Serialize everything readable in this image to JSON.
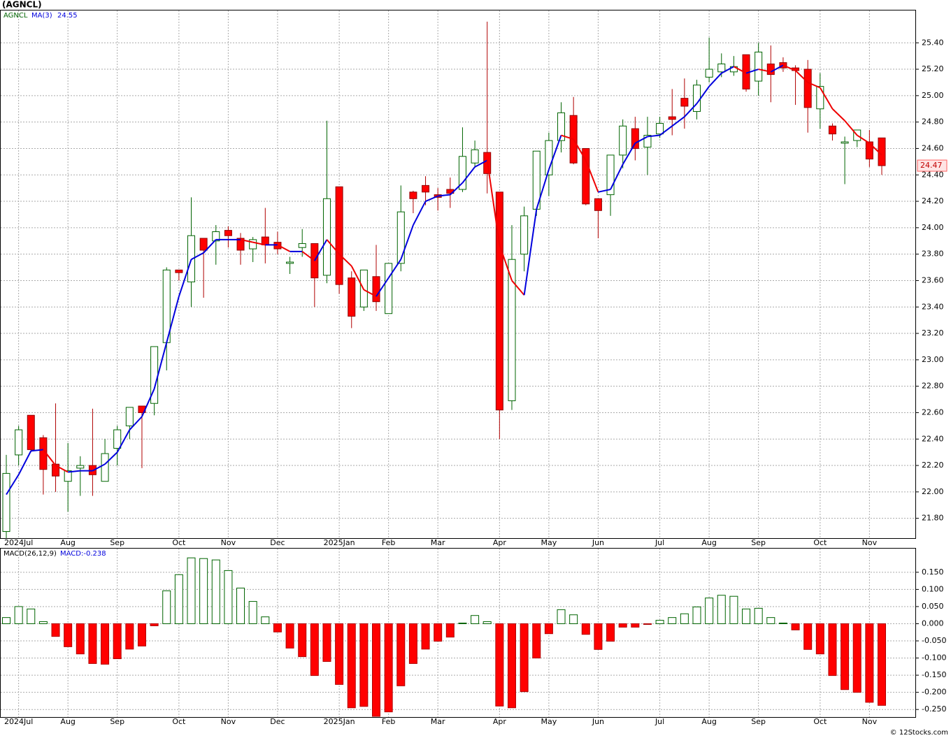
{
  "source": "© 12Stocks.com",
  "chart_data": [
    {
      "type": "candlestick",
      "title": "(AGNCL)",
      "symbol": "AGNCL",
      "categories": [
        null,
        "2024Jul",
        null,
        null,
        null,
        "Aug",
        null,
        null,
        null,
        "Sep",
        null,
        null,
        null,
        null,
        "Oct",
        null,
        null,
        null,
        "Nov",
        null,
        null,
        null,
        "Dec",
        null,
        null,
        null,
        null,
        "2025Jan",
        null,
        null,
        null,
        "Feb",
        null,
        null,
        null,
        "Mar",
        null,
        null,
        null,
        null,
        "Apr",
        null,
        null,
        null,
        "May",
        null,
        null,
        null,
        "Jun",
        null,
        null,
        null,
        null,
        "Jul",
        null,
        null,
        null,
        "Aug",
        null,
        null,
        null,
        "Sep",
        null,
        null,
        null,
        null,
        "Oct",
        null,
        null,
        null,
        "Nov",
        null
      ],
      "open": [
        21.7,
        22.28,
        22.58,
        22.41,
        22.21,
        22.08,
        22.18,
        22.2,
        22.08,
        22.33,
        22.5,
        22.65,
        22.67,
        23.13,
        23.68,
        23.59,
        23.92,
        23.9,
        23.98,
        23.92,
        23.84,
        23.93,
        23.89,
        23.73,
        23.85,
        23.88,
        23.64,
        24.31,
        23.62,
        23.4,
        23.63,
        23.35,
        23.73,
        24.27,
        24.32,
        24.25,
        24.29,
        24.29,
        24.49,
        24.57,
        24.27,
        22.69,
        23.8,
        24.14,
        24.4,
        24.66,
        24.85,
        24.6,
        24.22,
        24.25,
        24.55,
        24.75,
        24.61,
        24.71,
        24.84,
        24.98,
        24.88,
        25.14,
        25.18,
        25.18,
        25.31,
        25.11,
        25.24,
        25.25,
        25.21,
        25.2,
        24.9,
        24.77,
        24.64,
        24.66,
        24.65,
        24.68
      ],
      "high": [
        22.28,
        22.5,
        22.58,
        22.43,
        22.67,
        22.37,
        22.27,
        22.63,
        22.4,
        22.5,
        22.64,
        22.65,
        23.1,
        23.7,
        23.68,
        24.23,
        23.92,
        24.02,
        24.01,
        23.96,
        23.93,
        24.15,
        23.97,
        23.78,
        23.99,
        23.88,
        24.81,
        24.31,
        23.67,
        23.68,
        23.87,
        23.73,
        24.32,
        24.28,
        24.39,
        24.3,
        24.38,
        24.76,
        24.66,
        25.56,
        24.27,
        24.02,
        24.16,
        24.58,
        24.72,
        24.95,
        24.99,
        24.6,
        24.22,
        24.55,
        24.82,
        24.84,
        24.84,
        24.84,
        25.05,
        25.13,
        25.12,
        25.44,
        25.32,
        25.3,
        25.31,
        25.4,
        25.38,
        25.29,
        25.23,
        25.27,
        25.17,
        24.79,
        24.69,
        24.74,
        24.74,
        24.68
      ],
      "low": [
        21.65,
        22.2,
        22.3,
        21.98,
        22.0,
        21.85,
        21.97,
        21.97,
        22.08,
        22.2,
        22.4,
        22.18,
        22.58,
        22.92,
        23.6,
        23.4,
        23.47,
        23.72,
        23.85,
        23.72,
        23.74,
        23.73,
        23.8,
        23.65,
        23.78,
        23.4,
        23.58,
        23.5,
        23.24,
        23.37,
        23.37,
        23.35,
        23.67,
        24.11,
        24.17,
        24.13,
        24.15,
        24.27,
        24.46,
        24.26,
        22.4,
        22.62,
        23.67,
        24.09,
        24.24,
        24.57,
        24.48,
        24.17,
        23.92,
        24.09,
        24.45,
        24.51,
        24.4,
        24.68,
        24.7,
        24.75,
        24.82,
        25.1,
        25.14,
        25.15,
        25.03,
        25.0,
        24.95,
        25.18,
        24.93,
        24.72,
        24.75,
        24.66,
        24.33,
        24.61,
        24.46,
        24.4
      ],
      "close": [
        22.14,
        22.47,
        22.32,
        22.17,
        22.12,
        22.16,
        22.2,
        22.13,
        22.29,
        22.47,
        22.64,
        22.6,
        23.1,
        23.68,
        23.66,
        23.94,
        23.83,
        23.97,
        23.94,
        23.83,
        23.91,
        23.87,
        23.84,
        23.74,
        23.88,
        23.62,
        24.22,
        23.57,
        23.33,
        23.68,
        23.44,
        23.73,
        24.12,
        24.22,
        24.27,
        24.23,
        24.26,
        24.54,
        24.59,
        24.41,
        22.62,
        23.76,
        24.09,
        24.58,
        24.66,
        24.87,
        24.49,
        24.18,
        24.13,
        24.55,
        24.77,
        24.6,
        24.7,
        24.79,
        24.82,
        24.92,
        25.08,
        25.2,
        25.24,
        25.22,
        25.05,
        25.33,
        25.16,
        25.21,
        25.19,
        24.91,
        25.07,
        24.71,
        24.65,
        24.74,
        24.52,
        24.47
      ],
      "series": [
        {
          "name": "MA(3)",
          "color": "#0000dd",
          "down_color": "#ee0000",
          "values": [
            21.98,
            22.13,
            22.31,
            22.32,
            22.2,
            22.15,
            22.16,
            22.16,
            22.21,
            22.3,
            22.47,
            22.57,
            22.78,
            23.13,
            23.48,
            23.76,
            23.81,
            23.91,
            23.91,
            23.91,
            23.89,
            23.87,
            23.87,
            23.82,
            23.82,
            23.75,
            23.91,
            23.8,
            23.71,
            23.53,
            23.48,
            23.62,
            23.76,
            24.02,
            24.2,
            24.24,
            24.25,
            24.34,
            24.46,
            24.51,
            23.87,
            23.6,
            23.49,
            24.14,
            24.44,
            24.7,
            24.67,
            24.51,
            24.27,
            24.29,
            24.48,
            24.64,
            24.69,
            24.7,
            24.77,
            24.84,
            24.94,
            25.07,
            25.17,
            25.22,
            25.17,
            25.2,
            25.18,
            25.23,
            25.19,
            25.1,
            25.06,
            24.9,
            24.81,
            24.7,
            24.64,
            24.55
          ]
        }
      ],
      "up_color": "#006400",
      "down_color": "#ff0000",
      "ylim": [
        21.65,
        25.65
      ],
      "yticks": [
        {
          "value": 21.8,
          "label": "21.80"
        },
        {
          "value": 22.0,
          "label": "22.00"
        },
        {
          "value": 22.2,
          "label": "22.20"
        },
        {
          "value": 22.4,
          "label": "22.40"
        },
        {
          "value": 22.6,
          "label": "22.60"
        },
        {
          "value": 22.8,
          "label": "22.80"
        },
        {
          "value": 23.0,
          "label": "23.00"
        },
        {
          "value": 23.2,
          "label": "23.20"
        },
        {
          "value": 23.4,
          "label": "23.40"
        },
        {
          "value": 23.6,
          "label": "23.60"
        },
        {
          "value": 23.8,
          "label": "23.80"
        },
        {
          "value": 24.0,
          "label": "24.00"
        },
        {
          "value": 24.2,
          "label": "24.20"
        },
        {
          "value": 24.4,
          "label": "24.40"
        },
        {
          "value": 24.6,
          "label": "24.60"
        },
        {
          "value": 24.8,
          "label": "24.80"
        },
        {
          "value": 25.0,
          "label": "25.00"
        },
        {
          "value": 25.2,
          "label": "25.20"
        },
        {
          "value": 25.4,
          "label": "25.40"
        }
      ],
      "grid": true
    },
    {
      "type": "bar",
      "title": "MACD(26,12,9)",
      "value_label": "MACD:-0.238",
      "values": [
        0.018,
        0.05,
        0.043,
        0.006,
        -0.037,
        -0.067,
        -0.088,
        -0.116,
        -0.118,
        -0.102,
        -0.074,
        -0.065,
        -0.006,
        0.096,
        0.143,
        0.192,
        0.19,
        0.186,
        0.155,
        0.104,
        0.065,
        0.02,
        -0.024,
        -0.071,
        -0.096,
        -0.151,
        -0.11,
        -0.177,
        -0.245,
        -0.241,
        -0.27,
        -0.257,
        -0.181,
        -0.116,
        -0.074,
        -0.051,
        -0.039,
        0.002,
        0.024,
        0.006,
        -0.24,
        -0.245,
        -0.198,
        -0.1,
        -0.029,
        0.041,
        0.026,
        -0.031,
        -0.075,
        -0.051,
        -0.01,
        -0.01,
        -0.002,
        0.01,
        0.018,
        0.029,
        0.049,
        0.075,
        0.083,
        0.08,
        0.043,
        0.045,
        0.018,
        0.002,
        -0.018,
        -0.075,
        -0.088,
        -0.151,
        -0.192,
        -0.2,
        -0.229,
        -0.238
      ],
      "up_color": "#006400",
      "down_color": "#ff0000",
      "ylim": [
        -0.272,
        0.221
      ],
      "yticks": [
        {
          "value": -0.25,
          "label": "-0.250"
        },
        {
          "value": -0.2,
          "label": "-0.200"
        },
        {
          "value": -0.15,
          "label": "-0.150"
        },
        {
          "value": -0.1,
          "label": "-0.100"
        },
        {
          "value": -0.05,
          "label": "-0.050"
        },
        {
          "value": 0,
          "label": "0.000"
        },
        {
          "value": 0.05,
          "label": "0.050"
        },
        {
          "value": 0.1,
          "label": "0.100"
        },
        {
          "value": 0.15,
          "label": "0.150"
        }
      ],
      "grid": true
    }
  ]
}
